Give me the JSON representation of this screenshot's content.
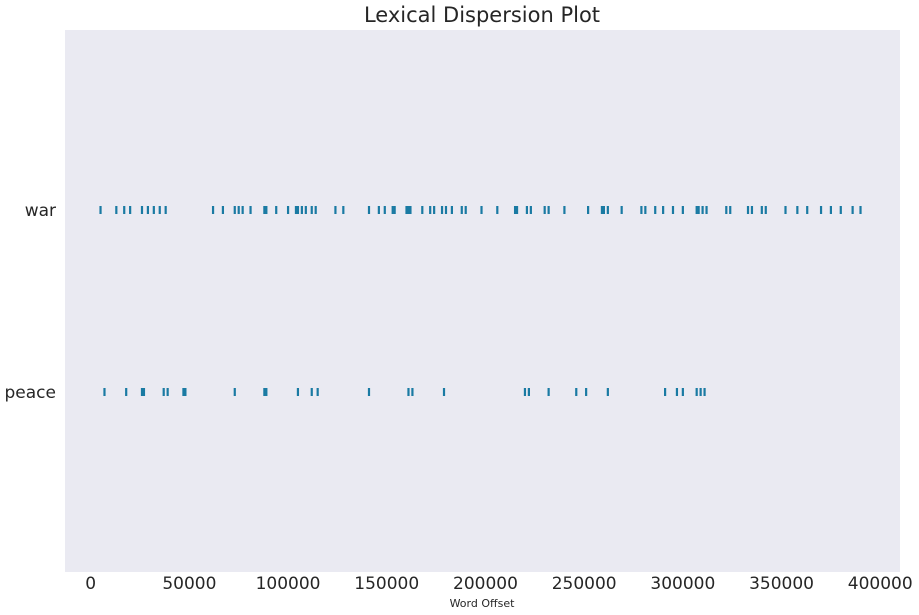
{
  "chart_data": {
    "type": "scatter",
    "title": "Lexical Dispersion Plot",
    "xlabel": "Word Offset",
    "ylabel": "",
    "xlim": [
      -13000,
      410000
    ],
    "xticks": [
      0,
      50000,
      100000,
      150000,
      200000,
      250000,
      300000,
      350000,
      400000
    ],
    "xtick_labels": [
      "0",
      "50000",
      "100000",
      "150000",
      "200000",
      "250000",
      "300000",
      "350000",
      "400000"
    ],
    "categories": [
      "war",
      "peace"
    ],
    "grid": false,
    "colors": {
      "marker": "#1a7aa3",
      "plot_bg": "#eaeaf2",
      "text": "#262626"
    },
    "series": [
      {
        "name": "war",
        "x": [
          5000,
          13000,
          17000,
          20000,
          26000,
          29000,
          32000,
          35000,
          38000,
          62000,
          67000,
          73000,
          75000,
          77000,
          81000,
          88000,
          89000,
          94000,
          100000,
          104000,
          105000,
          107000,
          109000,
          112000,
          114000,
          124000,
          128000,
          141000,
          146000,
          149000,
          153000,
          154000,
          160000,
          161000,
          162000,
          168000,
          172000,
          174000,
          178000,
          180000,
          183000,
          188000,
          190000,
          198000,
          206000,
          215000,
          216000,
          221000,
          223000,
          230000,
          232000,
          240000,
          252000,
          259000,
          260000,
          262000,
          269000,
          279000,
          281000,
          286000,
          290000,
          295000,
          300000,
          307000,
          308000,
          310000,
          312000,
          322000,
          324000,
          333000,
          335000,
          340000,
          342000,
          352000,
          358000,
          363000,
          370000,
          375000,
          380000,
          386000,
          390000
        ]
      },
      {
        "name": "peace",
        "x": [
          7000,
          18000,
          26000,
          27000,
          37000,
          39000,
          47000,
          48000,
          73000,
          88000,
          89000,
          105000,
          112000,
          115000,
          141000,
          161000,
          163000,
          179000,
          220000,
          222000,
          232000,
          246000,
          251000,
          262000,
          291000,
          297000,
          300000,
          307000,
          309000,
          311000
        ]
      }
    ]
  }
}
